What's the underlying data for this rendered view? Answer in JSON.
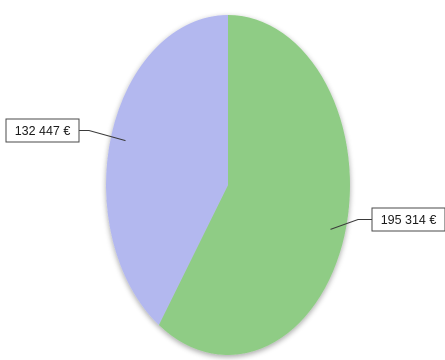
{
  "chart_data": {
    "type": "pie",
    "title": "",
    "slices": [
      {
        "value": 195314,
        "label": "195 314 €",
        "color": "#8fcc85"
      },
      {
        "value": 132447,
        "label": "132 447 €",
        "color": "#b3b8ef"
      }
    ],
    "legend": "none",
    "start_angle": "12 o'clock, clockwise"
  }
}
